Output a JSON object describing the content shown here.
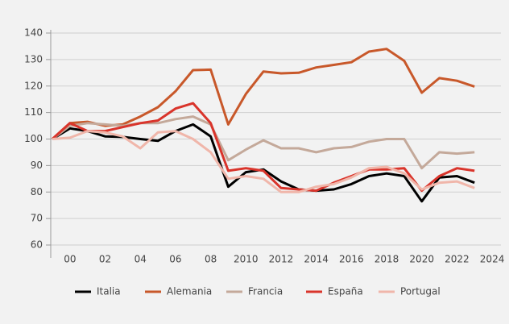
{
  "chart_data": {
    "type": "line",
    "x": [
      1999,
      2000,
      2001,
      2002,
      2003,
      2004,
      2005,
      2006,
      2007,
      2008,
      2009,
      2010,
      2011,
      2012,
      2013,
      2014,
      2015,
      2016,
      2017,
      2018,
      2019,
      2020,
      2021,
      2022,
      2023
    ],
    "series": [
      {
        "name": "Italia",
        "color": "#000000",
        "values": [
          100,
          104,
          103,
          101,
          100.8,
          100,
          99.3,
          103,
          105.5,
          101,
          82,
          87.5,
          88.5,
          84,
          81,
          80.5,
          81,
          83,
          86,
          87,
          86,
          76.5,
          85.5,
          86,
          83.5
        ]
      },
      {
        "name": "Alemania",
        "color": "#c8582a",
        "values": [
          100,
          106,
          106.5,
          105,
          105.5,
          108.5,
          112,
          118,
          126,
          126.2,
          105.5,
          117,
          125.5,
          124.8,
          125,
          127,
          128,
          129,
          133,
          134,
          129.5,
          117.5,
          123,
          122,
          119.8
        ]
      },
      {
        "name": "Francia",
        "color": "#c4a99a",
        "values": [
          100,
          105,
          106,
          105.5,
          105,
          106,
          106,
          107.5,
          108.5,
          105.5,
          92,
          96,
          99.5,
          96.5,
          96.5,
          95,
          96.5,
          97,
          99,
          100,
          100,
          89,
          95,
          94.5,
          95
        ]
      },
      {
        "name": "España",
        "color": "#d9342b",
        "values": [
          100,
          106,
          103,
          103,
          104.5,
          106,
          107,
          111.5,
          113.5,
          106,
          88,
          89,
          88,
          81.5,
          81,
          80.5,
          83.5,
          86,
          88.5,
          88.5,
          89,
          80.5,
          86,
          89,
          88
        ]
      },
      {
        "name": "Portugal",
        "color": "#f0b6aa",
        "values": [
          100,
          100.5,
          103,
          102.5,
          101,
          96.5,
          102.5,
          103,
          100,
          95,
          85,
          86,
          85,
          80,
          80,
          82,
          83,
          85.5,
          89,
          89.5,
          87,
          81,
          83.5,
          84,
          81.5
        ]
      }
    ],
    "xlim": [
      1999,
      2024.5
    ],
    "xticks": [
      {
        "value": 2000,
        "label": "00"
      },
      {
        "value": 2002,
        "label": "02"
      },
      {
        "value": 2004,
        "label": "04"
      },
      {
        "value": 2006,
        "label": "06"
      },
      {
        "value": 2008,
        "label": "08"
      },
      2010,
      2012,
      2014,
      2016,
      2018,
      2020,
      2022,
      2024
    ],
    "ylim": [
      60,
      140
    ],
    "yticks": [
      60,
      70,
      80,
      90,
      100,
      110,
      120,
      130,
      140
    ],
    "grid": true,
    "legend": "bottom"
  }
}
